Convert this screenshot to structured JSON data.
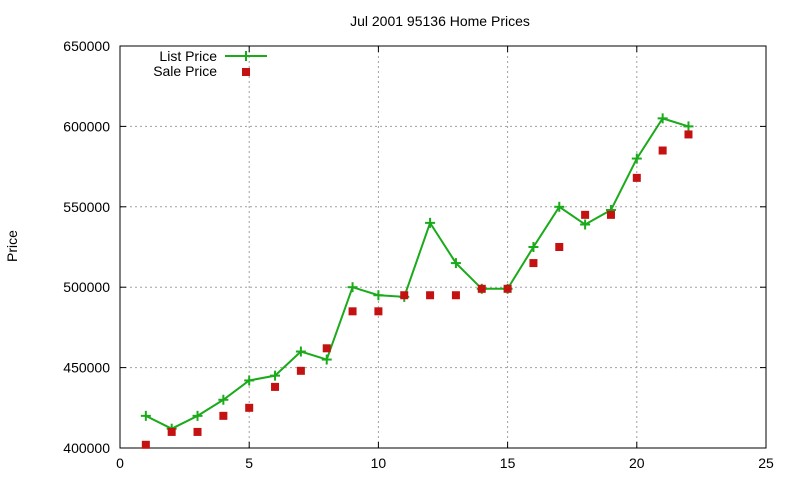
{
  "colors": {
    "list_price": "#1aaa1a",
    "sale_price": "#c41111",
    "grid": "#a0a0a0",
    "axis": "#000000"
  },
  "chart_data": {
    "type": "line",
    "title": "Jul 2001 95136 Home Prices",
    "xlabel": "",
    "ylabel": "Price",
    "xlim": [
      0,
      25
    ],
    "ylim": [
      400000,
      650000
    ],
    "x_ticks": [
      0,
      5,
      10,
      15,
      20,
      25
    ],
    "y_ticks": [
      400000,
      450000,
      500000,
      550000,
      600000,
      650000
    ],
    "grid": true,
    "legend_position": "top-left",
    "series": [
      {
        "name": "List Price",
        "style": "linespoints",
        "marker": "plus",
        "color": "#1aaa1a",
        "x": [
          1,
          2,
          3,
          4,
          5,
          6,
          7,
          8,
          9,
          10,
          11,
          12,
          13,
          14,
          15,
          16,
          17,
          18,
          19,
          20,
          21,
          22
        ],
        "y": [
          420000,
          412000,
          420000,
          430000,
          442000,
          445000,
          460000,
          455000,
          500000,
          495000,
          494000,
          540000,
          515000,
          499000,
          499000,
          525000,
          550000,
          539000,
          548000,
          580000,
          605000,
          600000
        ]
      },
      {
        "name": "Sale Price",
        "style": "points",
        "marker": "square",
        "color": "#c41111",
        "x": [
          1,
          2,
          3,
          4,
          5,
          6,
          7,
          8,
          9,
          10,
          11,
          12,
          13,
          14,
          15,
          16,
          17,
          18,
          19,
          20,
          21,
          22
        ],
        "y": [
          402000,
          410000,
          410000,
          420000,
          425000,
          438000,
          448000,
          462000,
          485000,
          485000,
          495000,
          495000,
          495000,
          499000,
          499000,
          515000,
          525000,
          545000,
          545000,
          568000,
          585000,
          595000
        ]
      }
    ]
  }
}
